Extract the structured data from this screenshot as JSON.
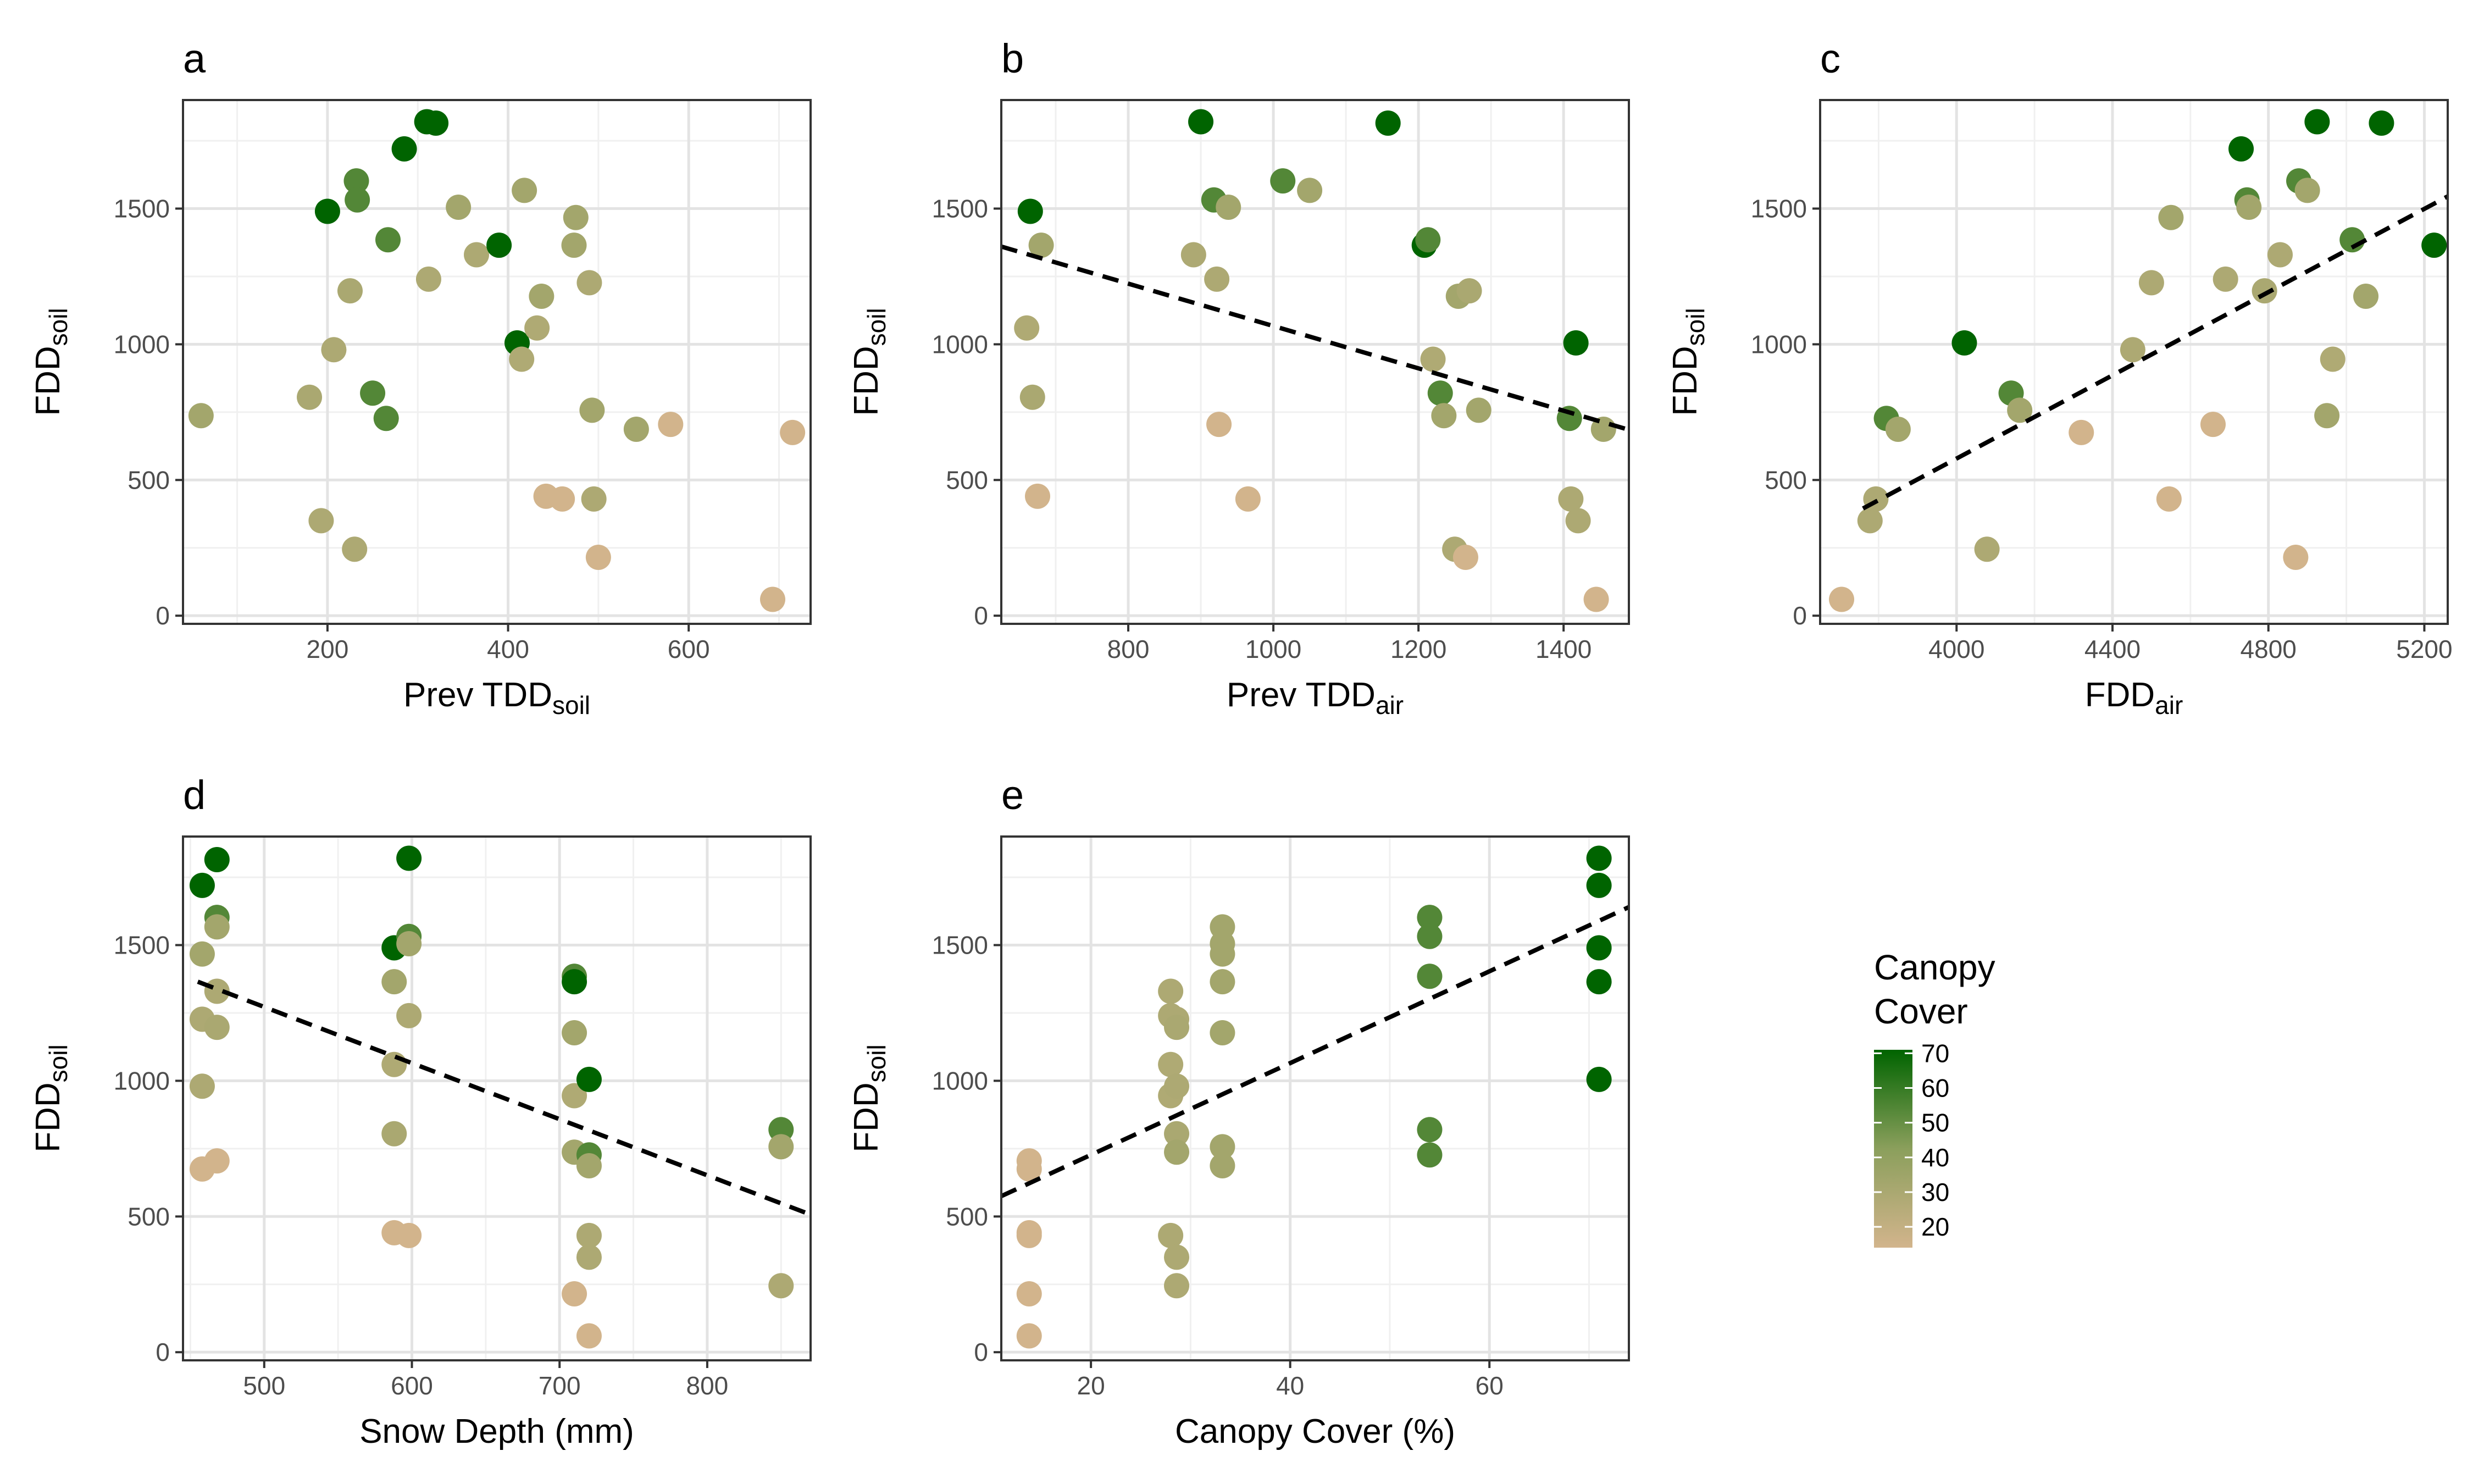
{
  "chart_data": [
    {
      "id": "a",
      "type": "scatter",
      "title": "a",
      "xlabel": {
        "main": "Prev TDD",
        "sub": "soil"
      },
      "ylabel": {
        "main": "FDD",
        "sub": "soil"
      },
      "xlim": [
        40,
        735
      ],
      "ylim": [
        -30,
        1900
      ],
      "xticks": [
        200,
        400,
        600
      ],
      "yticks": [
        0,
        500,
        1000,
        1500
      ],
      "grid": true,
      "trend_line": null,
      "points": [
        {
          "x": 60,
          "y": 737,
          "c": 33
        },
        {
          "x": 180,
          "y": 805,
          "c": 30
        },
        {
          "x": 193,
          "y": 350,
          "c": 29
        },
        {
          "x": 200,
          "y": 1490,
          "c": 71
        },
        {
          "x": 207,
          "y": 980,
          "c": 29
        },
        {
          "x": 225,
          "y": 1197,
          "c": 30
        },
        {
          "x": 230,
          "y": 245,
          "c": 29
        },
        {
          "x": 232,
          "y": 1602,
          "c": 54
        },
        {
          "x": 233,
          "y": 1532,
          "c": 54
        },
        {
          "x": 250,
          "y": 820,
          "c": 54
        },
        {
          "x": 265,
          "y": 727,
          "c": 54
        },
        {
          "x": 267,
          "y": 1385,
          "c": 54
        },
        {
          "x": 285,
          "y": 1720,
          "c": 71
        },
        {
          "x": 310,
          "y": 1820,
          "c": 71
        },
        {
          "x": 312,
          "y": 1240,
          "c": 29
        },
        {
          "x": 320,
          "y": 1815,
          "c": 71
        },
        {
          "x": 345,
          "y": 1505,
          "c": 33
        },
        {
          "x": 365,
          "y": 1330,
          "c": 29
        },
        {
          "x": 390,
          "y": 1365,
          "c": 71
        },
        {
          "x": 410,
          "y": 1005,
          "c": 71
        },
        {
          "x": 415,
          "y": 945,
          "c": 28
        },
        {
          "x": 418,
          "y": 1567,
          "c": 33
        },
        {
          "x": 432,
          "y": 1060,
          "c": 28
        },
        {
          "x": 437,
          "y": 1177,
          "c": 33
        },
        {
          "x": 442,
          "y": 440,
          "c": 14
        },
        {
          "x": 460,
          "y": 430,
          "c": 14
        },
        {
          "x": 473,
          "y": 1365,
          "c": 33
        },
        {
          "x": 475,
          "y": 1467,
          "c": 33
        },
        {
          "x": 490,
          "y": 1227,
          "c": 29
        },
        {
          "x": 493,
          "y": 757,
          "c": 33
        },
        {
          "x": 495,
          "y": 430,
          "c": 29
        },
        {
          "x": 500,
          "y": 215,
          "c": 14
        },
        {
          "x": 542,
          "y": 687,
          "c": 33
        },
        {
          "x": 580,
          "y": 705,
          "c": 14
        },
        {
          "x": 693,
          "y": 60,
          "c": 14
        },
        {
          "x": 715,
          "y": 675,
          "c": 14
        }
      ]
    },
    {
      "id": "b",
      "type": "scatter",
      "title": "b",
      "xlabel": {
        "main": "Prev TDD",
        "sub": "air"
      },
      "ylabel": {
        "main": "FDD",
        "sub": "soil"
      },
      "xlim": [
        625,
        1490
      ],
      "ylim": [
        -30,
        1900
      ],
      "xticks": [
        800,
        1000,
        1200,
        1400
      ],
      "yticks": [
        0,
        500,
        1000,
        1500
      ],
      "grid": true,
      "trend_line": {
        "x": [
          625,
          1490
        ],
        "y": [
          1360,
          685
        ]
      },
      "points": [
        {
          "x": 660,
          "y": 1060,
          "c": 28
        },
        {
          "x": 665,
          "y": 1490,
          "c": 71
        },
        {
          "x": 668,
          "y": 805,
          "c": 30
        },
        {
          "x": 675,
          "y": 440,
          "c": 14
        },
        {
          "x": 680,
          "y": 1365,
          "c": 33
        },
        {
          "x": 890,
          "y": 1330,
          "c": 29
        },
        {
          "x": 900,
          "y": 1820,
          "c": 71
        },
        {
          "x": 918,
          "y": 1532,
          "c": 54
        },
        {
          "x": 922,
          "y": 1240,
          "c": 29
        },
        {
          "x": 925,
          "y": 705,
          "c": 14
        },
        {
          "x": 938,
          "y": 1505,
          "c": 33
        },
        {
          "x": 965,
          "y": 430,
          "c": 14
        },
        {
          "x": 1013,
          "y": 1602,
          "c": 54
        },
        {
          "x": 1050,
          "y": 1567,
          "c": 33
        },
        {
          "x": 1158,
          "y": 1815,
          "c": 71
        },
        {
          "x": 1208,
          "y": 1365,
          "c": 71
        },
        {
          "x": 1213,
          "y": 1385,
          "c": 54
        },
        {
          "x": 1220,
          "y": 945,
          "c": 28
        },
        {
          "x": 1230,
          "y": 820,
          "c": 54
        },
        {
          "x": 1235,
          "y": 737,
          "c": 33
        },
        {
          "x": 1250,
          "y": 245,
          "c": 29
        },
        {
          "x": 1255,
          "y": 1177,
          "c": 33
        },
        {
          "x": 1265,
          "y": 215,
          "c": 14
        },
        {
          "x": 1270,
          "y": 1197,
          "c": 30
        },
        {
          "x": 1283,
          "y": 757,
          "c": 33
        },
        {
          "x": 1408,
          "y": 727,
          "c": 54
        },
        {
          "x": 1410,
          "y": 430,
          "c": 29
        },
        {
          "x": 1417,
          "y": 1005,
          "c": 71
        },
        {
          "x": 1420,
          "y": 350,
          "c": 29
        },
        {
          "x": 1445,
          "y": 60,
          "c": 14
        },
        {
          "x": 1455,
          "y": 687,
          "c": 33
        }
      ]
    },
    {
      "id": "c",
      "type": "scatter",
      "title": "c",
      "xlabel": {
        "main": "FDD",
        "sub": "air"
      },
      "ylabel": {
        "main": "FDD",
        "sub": "soil"
      },
      "xlim": [
        3650,
        5260
      ],
      "ylim": [
        -30,
        1900
      ],
      "xticks": [
        4000,
        4400,
        4800,
        5200
      ],
      "yticks": [
        0,
        500,
        1000,
        1500
      ],
      "grid": true,
      "trend_line": {
        "x": [
          3760,
          5260
        ],
        "y": [
          395,
          1545
        ]
      },
      "points": [
        {
          "x": 3705,
          "y": 60,
          "c": 14
        },
        {
          "x": 3778,
          "y": 350,
          "c": 29
        },
        {
          "x": 3793,
          "y": 430,
          "c": 29
        },
        {
          "x": 3820,
          "y": 727,
          "c": 54
        },
        {
          "x": 3850,
          "y": 687,
          "c": 33
        },
        {
          "x": 4020,
          "y": 1005,
          "c": 71
        },
        {
          "x": 4078,
          "y": 245,
          "c": 29
        },
        {
          "x": 4140,
          "y": 820,
          "c": 54
        },
        {
          "x": 4162,
          "y": 757,
          "c": 33
        },
        {
          "x": 4320,
          "y": 675,
          "c": 14
        },
        {
          "x": 4452,
          "y": 980,
          "c": 29
        },
        {
          "x": 4500,
          "y": 1227,
          "c": 29
        },
        {
          "x": 4545,
          "y": 430,
          "c": 14
        },
        {
          "x": 4550,
          "y": 1467,
          "c": 33
        },
        {
          "x": 4658,
          "y": 705,
          "c": 14
        },
        {
          "x": 4690,
          "y": 1240,
          "c": 29
        },
        {
          "x": 4730,
          "y": 1720,
          "c": 71
        },
        {
          "x": 4745,
          "y": 1532,
          "c": 54
        },
        {
          "x": 4750,
          "y": 1505,
          "c": 33
        },
        {
          "x": 4790,
          "y": 1197,
          "c": 30
        },
        {
          "x": 4830,
          "y": 1330,
          "c": 29
        },
        {
          "x": 4870,
          "y": 215,
          "c": 14
        },
        {
          "x": 4878,
          "y": 1602,
          "c": 54
        },
        {
          "x": 4900,
          "y": 1567,
          "c": 33
        },
        {
          "x": 4925,
          "y": 1820,
          "c": 71
        },
        {
          "x": 4950,
          "y": 737,
          "c": 33
        },
        {
          "x": 4965,
          "y": 945,
          "c": 28
        },
        {
          "x": 5015,
          "y": 1385,
          "c": 54
        },
        {
          "x": 5050,
          "y": 1177,
          "c": 33
        },
        {
          "x": 5090,
          "y": 1815,
          "c": 71
        },
        {
          "x": 5225,
          "y": 1365,
          "c": 71
        }
      ]
    },
    {
      "id": "d",
      "type": "scatter",
      "title": "d",
      "xlabel": {
        "main": "Snow Depth (mm)",
        "sub": ""
      },
      "ylabel": {
        "main": "FDD",
        "sub": "soil"
      },
      "xlim": [
        445,
        870
      ],
      "ylim": [
        -30,
        1900
      ],
      "xticks": [
        500,
        600,
        700,
        800
      ],
      "yticks": [
        0,
        500,
        1000,
        1500
      ],
      "grid": true,
      "trend_line": {
        "x": [
          455,
          870
        ],
        "y": [
          1365,
          507
        ]
      },
      "points": [
        {
          "x": 458,
          "y": 1720,
          "c": 71
        },
        {
          "x": 458,
          "y": 1467,
          "c": 33
        },
        {
          "x": 458,
          "y": 1227,
          "c": 29
        },
        {
          "x": 458,
          "y": 980,
          "c": 29
        },
        {
          "x": 458,
          "y": 675,
          "c": 14
        },
        {
          "x": 468,
          "y": 1815,
          "c": 71
        },
        {
          "x": 468,
          "y": 1602,
          "c": 54
        },
        {
          "x": 468,
          "y": 1567,
          "c": 33
        },
        {
          "x": 468,
          "y": 1330,
          "c": 29
        },
        {
          "x": 468,
          "y": 1197,
          "c": 30
        },
        {
          "x": 468,
          "y": 705,
          "c": 14
        },
        {
          "x": 588,
          "y": 1490,
          "c": 71
        },
        {
          "x": 588,
          "y": 1365,
          "c": 33
        },
        {
          "x": 588,
          "y": 1060,
          "c": 28
        },
        {
          "x": 588,
          "y": 805,
          "c": 30
        },
        {
          "x": 588,
          "y": 440,
          "c": 14
        },
        {
          "x": 598,
          "y": 1820,
          "c": 71
        },
        {
          "x": 598,
          "y": 1532,
          "c": 54
        },
        {
          "x": 598,
          "y": 1505,
          "c": 33
        },
        {
          "x": 598,
          "y": 1240,
          "c": 29
        },
        {
          "x": 598,
          "y": 430,
          "c": 14
        },
        {
          "x": 710,
          "y": 1385,
          "c": 54
        },
        {
          "x": 710,
          "y": 1365,
          "c": 71
        },
        {
          "x": 710,
          "y": 1177,
          "c": 33
        },
        {
          "x": 710,
          "y": 945,
          "c": 28
        },
        {
          "x": 710,
          "y": 737,
          "c": 33
        },
        {
          "x": 710,
          "y": 215,
          "c": 14
        },
        {
          "x": 720,
          "y": 1005,
          "c": 71
        },
        {
          "x": 720,
          "y": 727,
          "c": 54
        },
        {
          "x": 720,
          "y": 687,
          "c": 33
        },
        {
          "x": 720,
          "y": 430,
          "c": 29
        },
        {
          "x": 720,
          "y": 350,
          "c": 29
        },
        {
          "x": 720,
          "y": 60,
          "c": 14
        },
        {
          "x": 850,
          "y": 820,
          "c": 54
        },
        {
          "x": 850,
          "y": 757,
          "c": 33
        },
        {
          "x": 850,
          "y": 245,
          "c": 29
        }
      ]
    },
    {
      "id": "e",
      "type": "scatter",
      "title": "e",
      "xlabel": {
        "main": "Canopy Cover (%)",
        "sub": ""
      },
      "ylabel": {
        "main": "FDD",
        "sub": "soil"
      },
      "xlim": [
        11,
        74
      ],
      "ylim": [
        -30,
        1900
      ],
      "xticks": [
        20,
        40,
        60
      ],
      "yticks": [
        0,
        500,
        1000,
        1500
      ],
      "grid": true,
      "trend_line": {
        "x": [
          11,
          74
        ],
        "y": [
          575,
          1640
        ]
      },
      "points": [
        {
          "x": 13.8,
          "y": 705,
          "c": 14
        },
        {
          "x": 13.8,
          "y": 675,
          "c": 14
        },
        {
          "x": 13.8,
          "y": 440,
          "c": 14
        },
        {
          "x": 13.8,
          "y": 430,
          "c": 14
        },
        {
          "x": 13.8,
          "y": 215,
          "c": 14
        },
        {
          "x": 13.8,
          "y": 60,
          "c": 14
        },
        {
          "x": 28,
          "y": 1330,
          "c": 29
        },
        {
          "x": 28,
          "y": 1240,
          "c": 29
        },
        {
          "x": 28,
          "y": 1060,
          "c": 28
        },
        {
          "x": 28,
          "y": 945,
          "c": 28
        },
        {
          "x": 28,
          "y": 430,
          "c": 29
        },
        {
          "x": 28.6,
          "y": 1227,
          "c": 29
        },
        {
          "x": 28.6,
          "y": 1197,
          "c": 30
        },
        {
          "x": 28.6,
          "y": 980,
          "c": 29
        },
        {
          "x": 28.6,
          "y": 805,
          "c": 30
        },
        {
          "x": 28.6,
          "y": 737,
          "c": 33
        },
        {
          "x": 28.6,
          "y": 350,
          "c": 29
        },
        {
          "x": 28.6,
          "y": 245,
          "c": 29
        },
        {
          "x": 33.2,
          "y": 1567,
          "c": 33
        },
        {
          "x": 33.2,
          "y": 1505,
          "c": 33
        },
        {
          "x": 33.2,
          "y": 1467,
          "c": 33
        },
        {
          "x": 33.2,
          "y": 1365,
          "c": 33
        },
        {
          "x": 33.2,
          "y": 1177,
          "c": 33
        },
        {
          "x": 33.2,
          "y": 757,
          "c": 33
        },
        {
          "x": 33.2,
          "y": 687,
          "c": 33
        },
        {
          "x": 54,
          "y": 1602,
          "c": 54
        },
        {
          "x": 54,
          "y": 1532,
          "c": 54
        },
        {
          "x": 54,
          "y": 1385,
          "c": 54
        },
        {
          "x": 54,
          "y": 820,
          "c": 54
        },
        {
          "x": 54,
          "y": 727,
          "c": 54
        },
        {
          "x": 71,
          "y": 1820,
          "c": 71
        },
        {
          "x": 71,
          "y": 1720,
          "c": 71
        },
        {
          "x": 71,
          "y": 1490,
          "c": 71
        },
        {
          "x": 71,
          "y": 1365,
          "c": 71
        },
        {
          "x": 71,
          "y": 1005,
          "c": 71
        }
      ]
    }
  ],
  "legend": {
    "title_line1": "Canopy",
    "title_line2": "Cover",
    "labels": [
      "70",
      "60",
      "50",
      "40",
      "30",
      "20"
    ],
    "values": [
      70,
      60,
      50,
      40,
      30,
      20
    ],
    "range": [
      14,
      71
    ],
    "color_low": "#d2b48c",
    "color_mid": "#8b9f5c",
    "color_high": "#006400"
  }
}
